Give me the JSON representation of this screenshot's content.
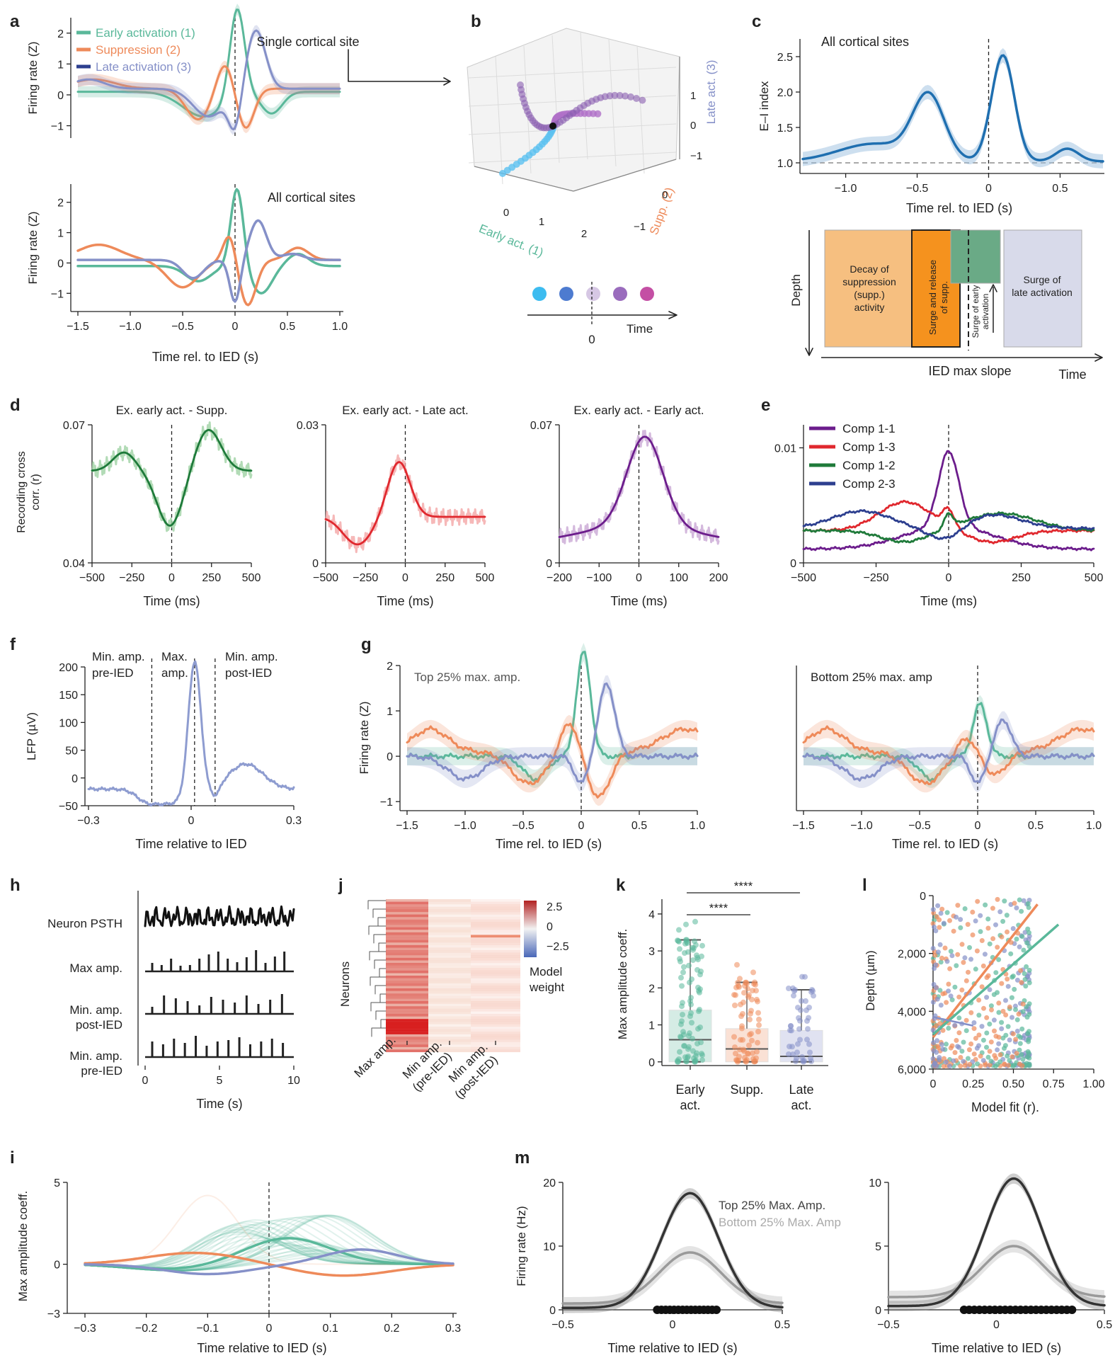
{
  "colors": {
    "early": "#5ab89a",
    "supp": "#ee8a5a",
    "late": "#8590c8",
    "blue": "#1f6fb0",
    "green": "#1f7a3a",
    "red": "#e0282e",
    "purple": "#6c1d8c",
    "navy": "#2d3f8f",
    "lfp": "#8e9cd0",
    "gray_dark": "#333333",
    "gray_light": "#9a9a9a"
  },
  "icons": {
    "bold_labels": "panel-letter"
  },
  "panels": {
    "a": {
      "label": "a",
      "top_title": "Single cortical site",
      "bottom_title": "All cortical sites",
      "ylabel": "Firing rate (Z)",
      "xlabel": "Time rel. to IED (s)",
      "legend": [
        "Early activation (1)",
        "Suppression (2)",
        "Late activation (3)"
      ],
      "yticks": [
        "2",
        "1",
        "0",
        "−1"
      ],
      "xticks": [
        "−1.5",
        "−1.0",
        "−0.5",
        "0",
        "0.5",
        "1.0"
      ]
    },
    "b": {
      "label": "b",
      "xlabel": "Early act. (1)",
      "ylabel": "Supp. (2)",
      "zlabel": "Late act. (3)",
      "xticks": [
        "0",
        "1",
        "2"
      ],
      "yticks": [
        "0",
        "−1"
      ],
      "zticks": [
        "1",
        "0",
        "−1"
      ],
      "time_label": "Time",
      "time_zero": "0"
    },
    "c": {
      "label": "c",
      "title": "All cortical sites",
      "ylabel": "E–I index",
      "xlabel": "Time rel. to IED (s)",
      "yticks": [
        "2.5",
        "2.0",
        "1.5",
        "1.0"
      ],
      "xticks": [
        "−1.0",
        "−0.5",
        "0",
        "0.5"
      ],
      "schematic": {
        "depth": "Depth",
        "time": "Time",
        "ied": "IED max slope",
        "box1": "Decay of suppression (supp.) activity",
        "box2": "Surge and release of supp.",
        "box3": "Surge of early activation",
        "box4": "Surge of late activation"
      }
    },
    "d": {
      "label": "d",
      "ylabel": "Recording cross corr. (r)",
      "xlabel": "Time (ms)",
      "sub": [
        {
          "title": "Ex. early act. - Supp.",
          "ytop": "0.07",
          "ybot": "0.04",
          "xticks": [
            "−500",
            "−250",
            "0",
            "250",
            "500"
          ]
        },
        {
          "title": "Ex. early act. - Late act.",
          "ytop": "0.03",
          "ybot": "0",
          "xticks": [
            "−500",
            "−250",
            "0",
            "250",
            "500"
          ]
        },
        {
          "title": "Ex. early act. - Early act.",
          "ytop": "0.07",
          "ybot": "0",
          "xticks": [
            "−200",
            "−100",
            "0",
            "100",
            "200"
          ]
        }
      ]
    },
    "e": {
      "label": "e",
      "ytop": "0.01",
      "ybot": "0",
      "xlabel": "Time (ms)",
      "xticks": [
        "−500",
        "−250",
        "0",
        "250",
        "500"
      ],
      "legend": [
        "Comp 1-1",
        "Comp 1-3",
        "Comp 1-2",
        "Comp 2-3"
      ]
    },
    "f": {
      "label": "f",
      "ylabel": "LFP (µV)",
      "xlabel": "Time relative to IED",
      "yticks": [
        "200",
        "150",
        "100",
        "50",
        "0",
        "−50"
      ],
      "xticks": [
        "−0.3",
        "0",
        "0.3"
      ],
      "annot": [
        "Min. amp.",
        "pre-IED",
        "Max.",
        "amp.",
        "Min. amp.",
        "post-IED"
      ]
    },
    "g": {
      "label": "g",
      "ylabel": "Firing rate (Z)",
      "xlabel": "Time rel. to IED (s)",
      "left_title": "Top 25% max. amp.",
      "right_title": "Bottom 25% max. amp",
      "yticks": [
        "2",
        "1",
        "0",
        "−1"
      ],
      "xticks": [
        "−1.5",
        "−1.0",
        "−0.5",
        "0",
        "0.5",
        "1.0"
      ]
    },
    "h": {
      "label": "h",
      "rows": [
        "Neuron PSTH",
        "Max amp.",
        "Min. amp.",
        "post-IED",
        "Min. amp.",
        "pre-IED"
      ],
      "xticks": [
        "0",
        "5",
        "10"
      ],
      "xlabel": "Time (s)"
    },
    "j": {
      "label": "j",
      "ylabel": "Neurons",
      "cbar_ticks": [
        "2.5",
        "0",
        "−2.5"
      ],
      "cbar_label1": "Model",
      "cbar_label2": "weight",
      "cols": [
        "Max amp.",
        "Min amp. (pre-IED)",
        "Min amp. (post-IED)"
      ],
      "cols_lines": [
        [
          "Max amp."
        ],
        [
          "Min amp.",
          "(pre-IED)"
        ],
        [
          "Min amp.",
          "(post-IED)"
        ]
      ]
    },
    "k": {
      "label": "k",
      "ylabel": "Max amplitude coeff.",
      "yticks": [
        "4",
        "3",
        "2",
        "1",
        "0"
      ],
      "groups": [
        [
          "Early",
          "act."
        ],
        [
          "Supp."
        ],
        [
          "Late",
          "act."
        ]
      ],
      "sig": "****"
    },
    "l": {
      "label": "l",
      "ylabel": "Depth (µm)",
      "xlabel": "Model fit (r).",
      "yticks": [
        "0",
        "2,000",
        "4,000",
        "6,000"
      ],
      "xticks": [
        "0",
        "0.25",
        "0.50",
        "0.75",
        "1.00"
      ]
    },
    "i": {
      "label": "i",
      "ylabel": "Max amplitude coeff.",
      "xlabel": "Time relative to IED (s)",
      "yticks": [
        "5",
        "0",
        "−3"
      ],
      "xticks": [
        "−0.3",
        "−0.2",
        "−0.1",
        "0",
        "0.1",
        "0.2",
        "0.3"
      ]
    },
    "m": {
      "label": "m",
      "ylabel": "Firing rate (Hz)",
      "xlabel": "Time relative to IED (s)",
      "legend": [
        "Top 25% Max. Amp.",
        "Bottom 25% Max. Amp"
      ],
      "left_yticks": [
        "20",
        "10",
        "0"
      ],
      "right_yticks": [
        "10",
        "5",
        "0"
      ],
      "xticks": [
        "−0.5",
        "0",
        "0.5"
      ]
    }
  },
  "chart_data": [
    {
      "type": "line",
      "panel": "c",
      "x": [
        -1.25,
        -1.0,
        -0.75,
        -0.55,
        -0.4,
        -0.25,
        -0.05,
        0.1,
        0.25,
        0.45,
        0.6,
        0.8
      ],
      "series": [
        {
          "values": [
            1.05,
            1.15,
            1.3,
            1.6,
            1.9,
            1.4,
            1.0,
            2.5,
            1.4,
            1.15,
            1.2,
            1.1
          ]
        }
      ],
      "ylim": [
        1.0,
        2.6
      ]
    },
    {
      "type": "line",
      "panel": "m-left",
      "x": [
        -0.5,
        -0.25,
        0,
        0.1,
        0.25,
        0.5
      ],
      "series": [
        {
          "name": "Top 25% Max. Amp.",
          "values": [
            0,
            2,
            14,
            18,
            12,
            1
          ]
        },
        {
          "name": "Bottom 25% Max. Amp",
          "values": [
            1,
            3,
            8,
            9,
            6,
            1
          ]
        }
      ]
    }
  ]
}
